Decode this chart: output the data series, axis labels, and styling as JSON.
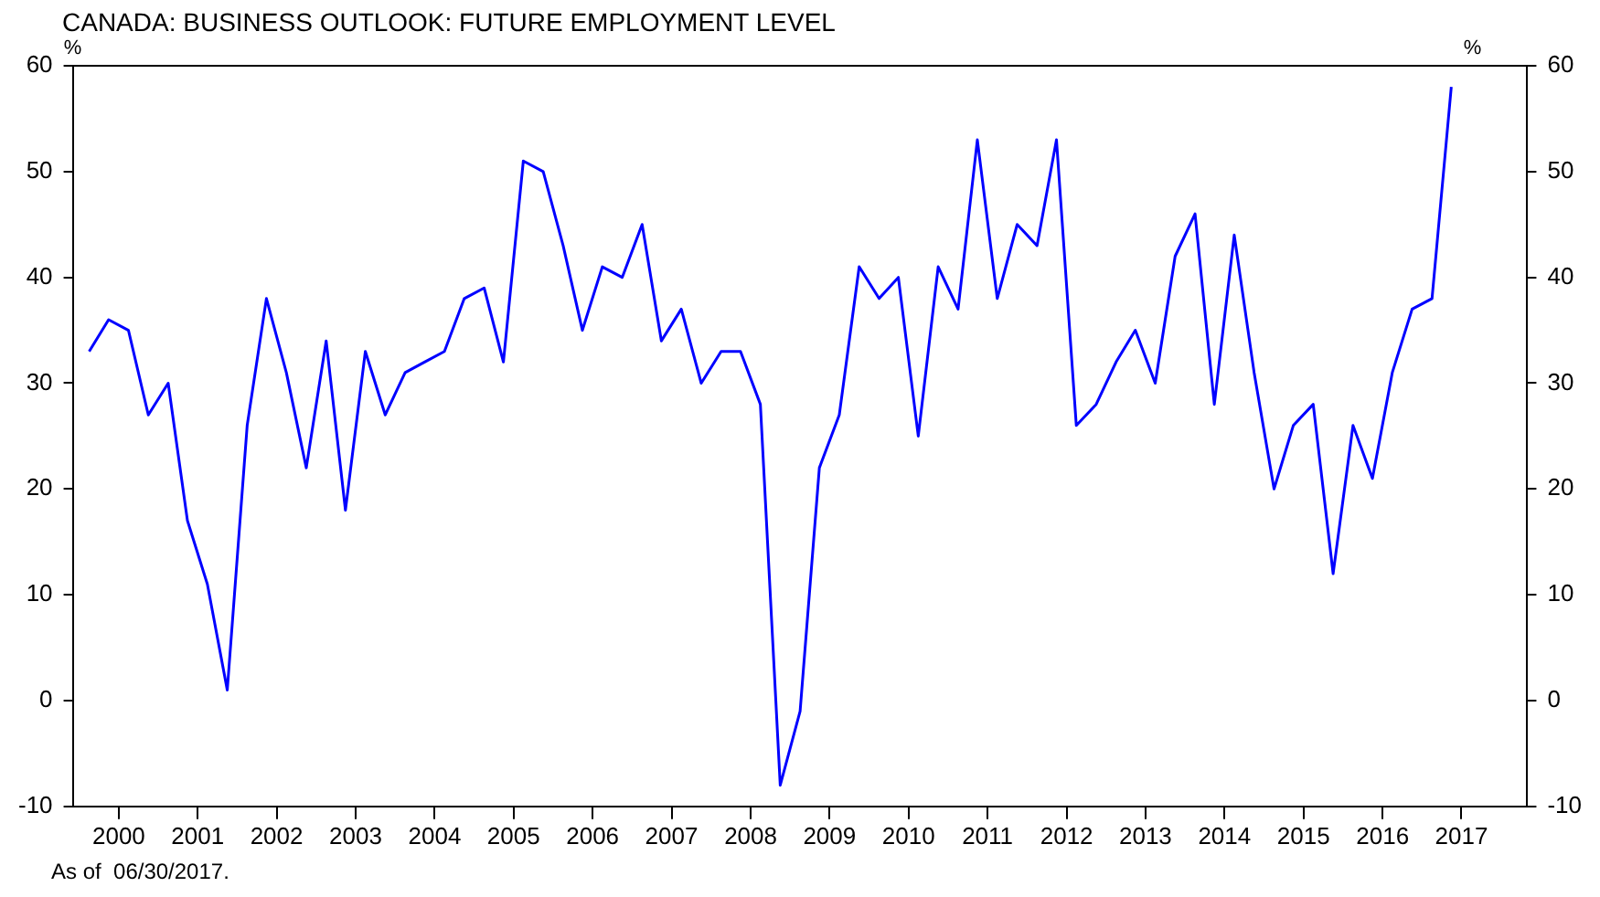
{
  "chart_data": {
    "type": "line",
    "title": "CANADA: BUSINESS OUTLOOK: FUTURE EMPLOYMENT LEVEL",
    "ylabel": "%",
    "y2label": "%",
    "annotations": [
      "As of  06/30/2017."
    ],
    "x": [
      "2000-02-15",
      "2000-05-15",
      "2000-08-15",
      "2000-11-15",
      "2001-02-15",
      "2001-05-15",
      "2001-08-15",
      "2001-11-15",
      "2002-02-15",
      "2002-05-15",
      "2002-08-15",
      "2002-11-15",
      "2003-02-15",
      "2003-05-15",
      "2003-08-15",
      "2003-11-15",
      "2004-02-15",
      "2004-05-15",
      "2004-08-15",
      "2004-11-15",
      "2005-02-15",
      "2005-05-15",
      "2005-08-15",
      "2005-11-15",
      "2006-02-15",
      "2006-05-15",
      "2006-08-15",
      "2006-11-15",
      "2007-02-15",
      "2007-05-15",
      "2007-08-15",
      "2007-11-15",
      "2008-02-15",
      "2008-05-15",
      "2008-08-15",
      "2008-11-15",
      "2009-02-15",
      "2009-05-15",
      "2009-08-15",
      "2009-11-15",
      "2010-02-15",
      "2010-05-15",
      "2010-08-15",
      "2010-11-15",
      "2011-02-15",
      "2011-05-15",
      "2011-08-15",
      "2011-11-15",
      "2012-02-15",
      "2012-05-15",
      "2012-08-15",
      "2012-11-15",
      "2013-02-15",
      "2013-05-15",
      "2013-08-15",
      "2013-11-15",
      "2014-02-15",
      "2014-05-15",
      "2014-08-15",
      "2014-11-15",
      "2015-02-15",
      "2015-05-15",
      "2015-08-15",
      "2015-11-15",
      "2016-02-15",
      "2016-05-15",
      "2016-08-15",
      "2016-11-15",
      "2017-02-15",
      "2017-05-15"
    ],
    "series": [
      {
        "color": "#0000ff",
        "values": [
          33,
          36,
          35,
          27,
          30,
          17,
          11,
          1,
          26,
          38,
          31,
          22,
          34,
          18,
          33,
          27,
          31,
          32,
          33,
          38,
          39,
          32,
          51,
          50,
          43,
          35,
          41,
          40,
          45,
          34,
          37,
          30,
          33,
          33,
          28,
          -8,
          -1,
          22,
          27,
          41,
          38,
          40,
          25,
          41,
          37,
          53,
          38,
          45,
          43,
          53,
          26,
          28,
          32,
          35,
          30,
          42,
          46,
          28,
          44,
          31,
          20,
          26,
          28,
          12,
          26,
          21,
          31,
          37,
          38,
          58
        ]
      }
    ],
    "xlim": [
      "1999-12-01",
      "2018-05-01"
    ],
    "xticks": [
      {
        "value": "2000-07-01",
        "label": "2000"
      },
      {
        "value": "2001-07-01",
        "label": "2001"
      },
      {
        "value": "2002-07-01",
        "label": "2002"
      },
      {
        "value": "2003-07-01",
        "label": "2003"
      },
      {
        "value": "2004-07-01",
        "label": "2004"
      },
      {
        "value": "2005-07-01",
        "label": "2005"
      },
      {
        "value": "2006-07-01",
        "label": "2006"
      },
      {
        "value": "2007-07-01",
        "label": "2007"
      },
      {
        "value": "2008-07-01",
        "label": "2008"
      },
      {
        "value": "2009-07-01",
        "label": "2009"
      },
      {
        "value": "2010-07-01",
        "label": "2010"
      },
      {
        "value": "2011-07-01",
        "label": "2011"
      },
      {
        "value": "2012-07-01",
        "label": "2012"
      },
      {
        "value": "2013-07-01",
        "label": "2013"
      },
      {
        "value": "2014-07-01",
        "label": "2014"
      },
      {
        "value": "2015-07-01",
        "label": "2015"
      },
      {
        "value": "2016-07-01",
        "label": "2016"
      },
      {
        "value": "2017-07-01",
        "label": "2017"
      }
    ],
    "ylim": [
      -10,
      60
    ],
    "yticks": [
      -10,
      0,
      10,
      20,
      30,
      40,
      50,
      60
    ],
    "y2lim": [
      -10,
      60
    ],
    "y2ticks": [
      -10,
      0,
      10,
      20,
      30,
      40,
      50,
      60
    ],
    "grid": false,
    "legend": false,
    "marker": "none",
    "line_style": "solid"
  }
}
